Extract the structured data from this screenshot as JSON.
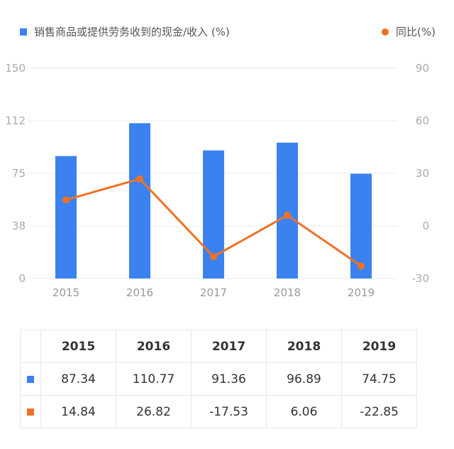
{
  "legend": {
    "bar_label": "销售商品或提供劳务收到的现金/收入 (%)",
    "line_label": "同比(%)"
  },
  "colors": {
    "bar": "#3b82f0",
    "line": "#f07124",
    "grid": "#eeeeee"
  },
  "chart_data": {
    "type": "bar",
    "categories": [
      "2015",
      "2016",
      "2017",
      "2018",
      "2019"
    ],
    "series": [
      {
        "name": "销售商品或提供劳务收到的现金/收入 (%)",
        "type": "bar",
        "axis": "left",
        "values": [
          87.34,
          110.77,
          91.36,
          96.89,
          74.75
        ]
      },
      {
        "name": "同比(%)",
        "type": "line",
        "axis": "right",
        "values": [
          14.84,
          26.82,
          -17.53,
          6.06,
          -22.85
        ]
      }
    ],
    "y_left": {
      "ticks": [
        "0",
        "38",
        "75",
        "112",
        "150"
      ],
      "range": [
        0,
        150
      ]
    },
    "y_right": {
      "ticks": [
        "-30",
        "0",
        "30",
        "60",
        "90"
      ],
      "range": [
        -30,
        90
      ]
    },
    "grid": true,
    "legend_position": "top"
  },
  "table": {
    "headers": [
      "2015",
      "2016",
      "2017",
      "2018",
      "2019"
    ],
    "rows": [
      {
        "series": "bar",
        "values": [
          "87.34",
          "110.77",
          "91.36",
          "96.89",
          "74.75"
        ]
      },
      {
        "series": "line",
        "values": [
          "14.84",
          "26.82",
          "-17.53",
          "6.06",
          "-22.85"
        ]
      }
    ]
  }
}
